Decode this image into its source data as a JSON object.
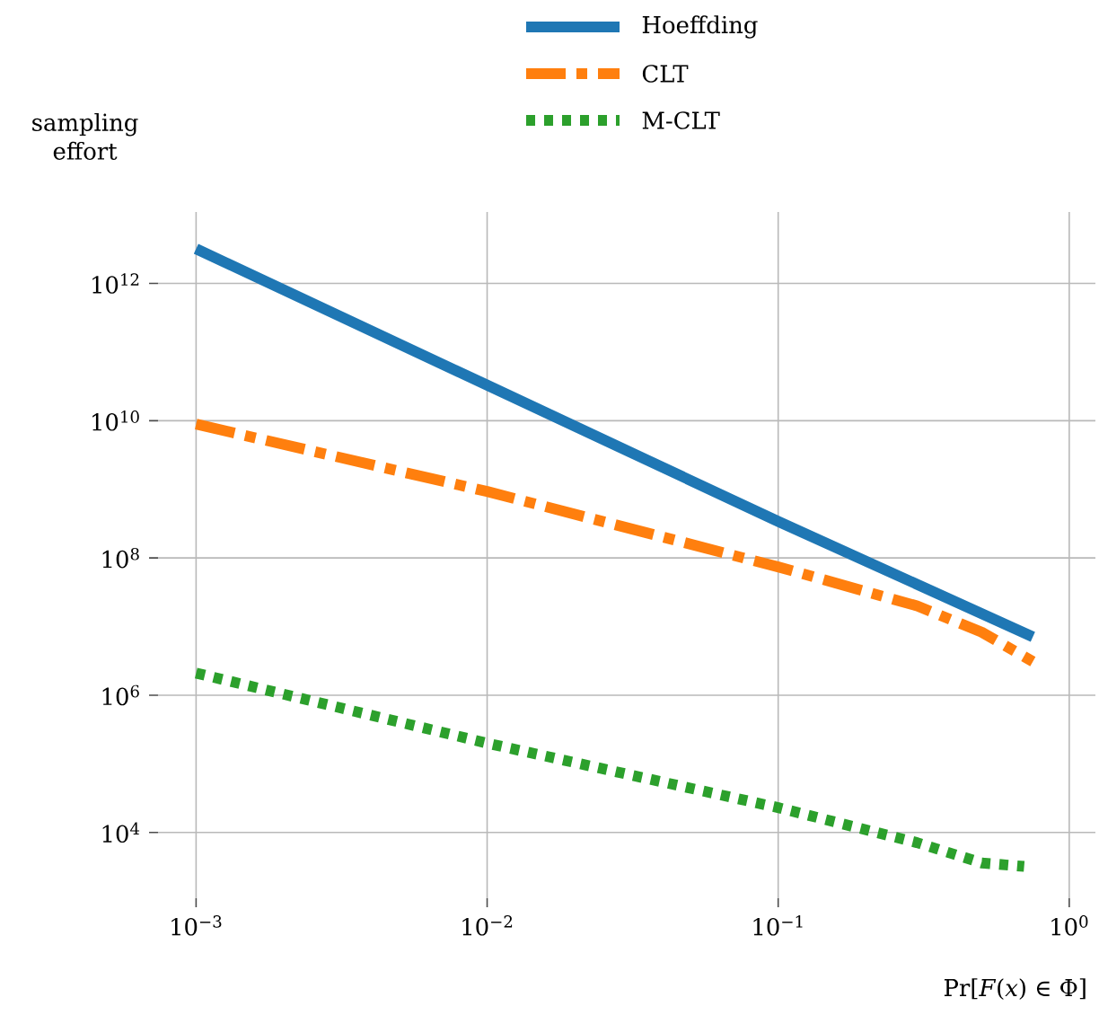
{
  "chart_data": {
    "type": "line",
    "xlabel": "Pr[*F*(*x*) ∈ Φ]",
    "ylabel": "sampling effort",
    "log": "xy",
    "grid": true,
    "legend": "top",
    "marker": "none",
    "xlim": [
      0.00074,
      1.23
    ],
    "ylim": [
      1100.0,
      11000000000000.0
    ],
    "xticks": [
      {
        "value": 0.001,
        "label": "10$^{−3}$"
      },
      {
        "value": 0.01,
        "label": "10$^{−2}$"
      },
      {
        "value": 0.1,
        "label": "10$^{−1}$"
      },
      {
        "value": 1,
        "label": "10$^{0}$"
      }
    ],
    "yticks": [
      {
        "value": 10000.0,
        "label": "10$^{4}$"
      },
      {
        "value": 1000000.0,
        "label": "10$^{6}$"
      },
      {
        "value": 100000000.0,
        "label": "10$^{8}$"
      },
      {
        "value": 10000000000.0,
        "label": "10$^{10}$"
      },
      {
        "value": 1000000000000.0,
        "label": "10$^{12}$"
      }
    ],
    "series": [
      {
        "name": "Hoeffding",
        "color": "#1f77b4",
        "line_style": "solid",
        "x": [
          0.001,
          0.01,
          0.1,
          0.75
        ],
        "values": [
          3200000000000.0,
          33000000000.0,
          340000000.0,
          7100000.0
        ]
      },
      {
        "name": "CLT",
        "color": "#ff7f0e",
        "line_style": "dashdot",
        "x": [
          0.001,
          0.01,
          0.1,
          0.3,
          0.5,
          0.75
        ],
        "values": [
          8900000000.0,
          930000000.0,
          74000000.0,
          20000000.0,
          8300000.0,
          3100000.0
        ]
      },
      {
        "name": "M-CLT",
        "color": "#2ca02c",
        "line_style": "dotted",
        "x": [
          0.001,
          0.01,
          0.1,
          0.3,
          0.5,
          0.7
        ],
        "values": [
          2100000.0,
          200000.0,
          23000.0,
          7100.0,
          3600.0,
          3200.0
        ]
      }
    ]
  }
}
